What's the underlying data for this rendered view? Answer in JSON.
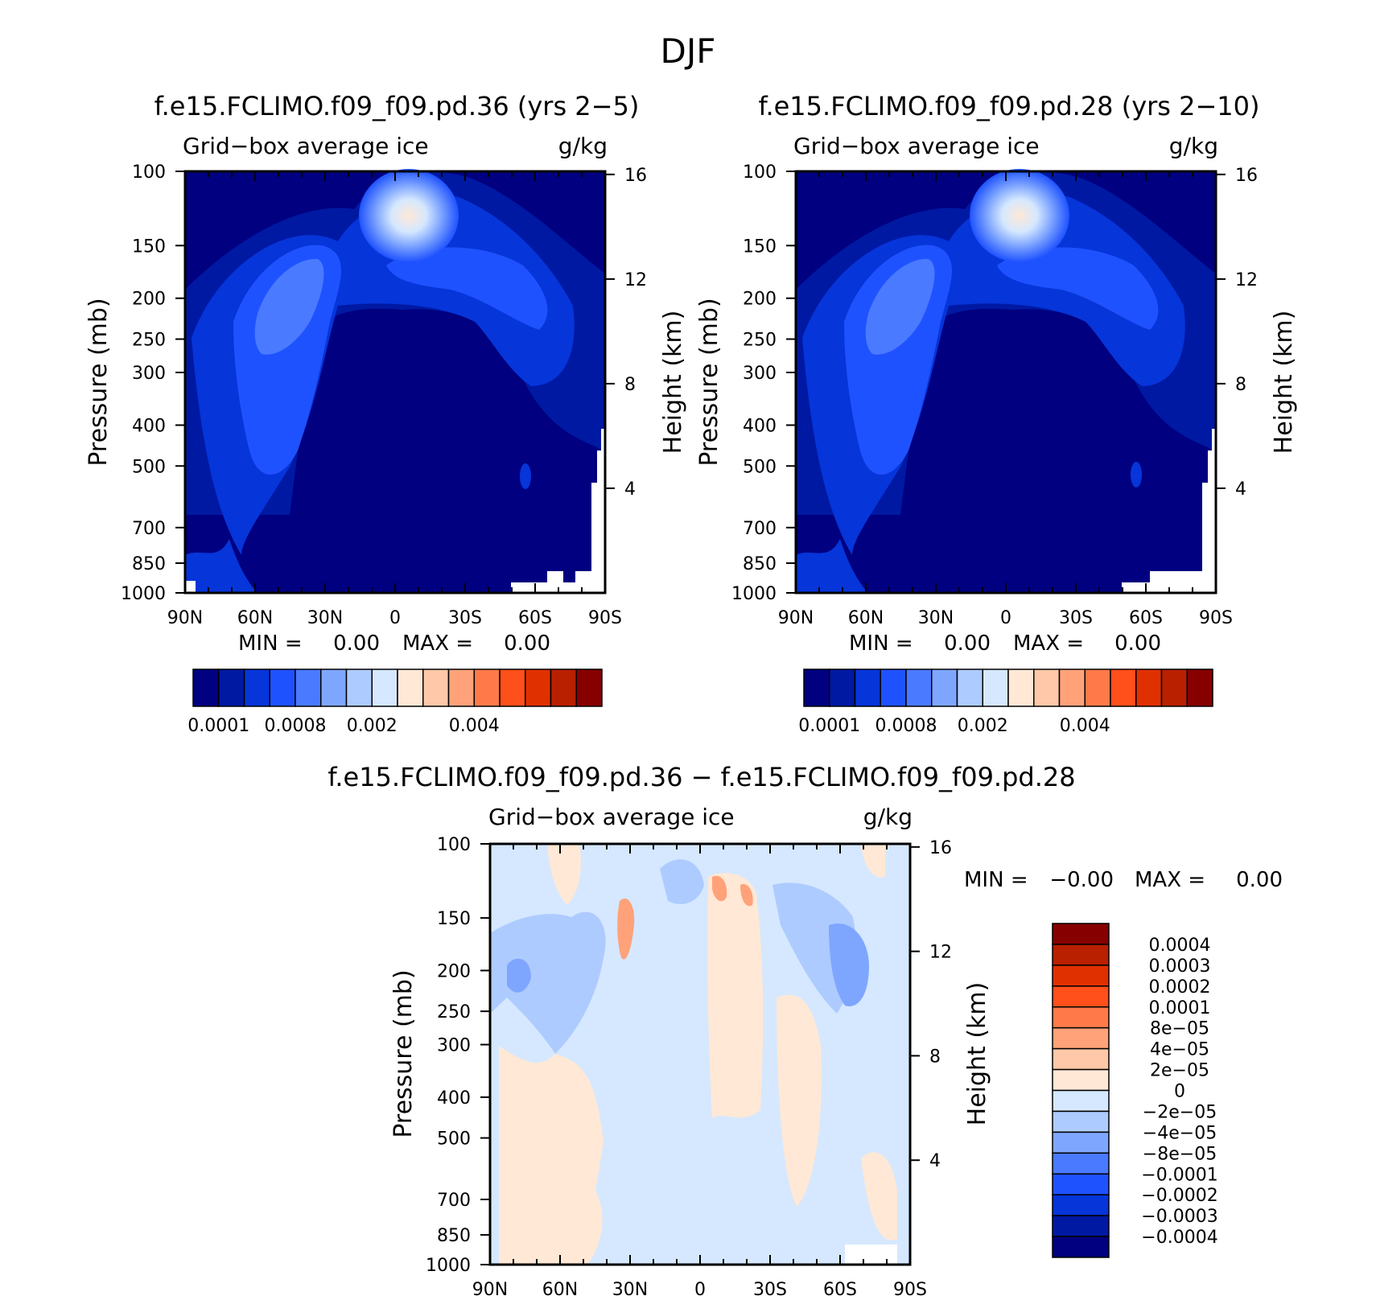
{
  "figure": {
    "title": "DJF"
  },
  "chart_data": [
    {
      "type": "heatmap",
      "panel": "left",
      "title": "f.e15.FCLIMO.f09_f09.pd.36 (yrs 2−5)",
      "field": "Grid−box average ice",
      "units": "g/kg",
      "xlabel": "",
      "ylabel": "Pressure (mb)",
      "y2label": "Height (km)",
      "x_ticks": [
        "90N",
        "60N",
        "30N",
        "0",
        "30S",
        "60S",
        "90S"
      ],
      "y_ticks": [
        "100",
        "150",
        "200",
        "250",
        "300",
        "400",
        "500",
        "700",
        "850",
        "1000"
      ],
      "y2_ticks": [
        "16",
        "12",
        "8",
        "4"
      ],
      "min_label": "MIN =",
      "min_value": "0.00",
      "max_label": "MAX =",
      "max_value": "0.00",
      "colorbar_labels": [
        "0.0001",
        "0.0008",
        "0.002",
        "0.004"
      ],
      "colors": [
        "#000080",
        "#0019a3",
        "#0635d9",
        "#1f52ff",
        "#4a7aff",
        "#7fa6ff",
        "#aecbff",
        "#d5e8ff",
        "#ffe8d6",
        "#ffc8a8",
        "#ffa27a",
        "#ff7a48",
        "#ff4f1a",
        "#e03000",
        "#b82000",
        "#870000"
      ]
    },
    {
      "type": "heatmap",
      "panel": "right",
      "title": "f.e15.FCLIMO.f09_f09.pd.28 (yrs 2−10)",
      "field": "Grid−box average ice",
      "units": "g/kg",
      "xlabel": "",
      "ylabel": "Pressure (mb)",
      "y2label": "Height (km)",
      "x_ticks": [
        "90N",
        "60N",
        "30N",
        "0",
        "30S",
        "60S",
        "90S"
      ],
      "y_ticks": [
        "100",
        "150",
        "200",
        "250",
        "300",
        "400",
        "500",
        "700",
        "850",
        "1000"
      ],
      "y2_ticks": [
        "16",
        "12",
        "8",
        "4"
      ],
      "min_label": "MIN =",
      "min_value": "0.00",
      "max_label": "MAX =",
      "max_value": "0.00",
      "colorbar_labels": [
        "0.0001",
        "0.0008",
        "0.002",
        "0.004"
      ],
      "colors": [
        "#000080",
        "#0019a3",
        "#0635d9",
        "#1f52ff",
        "#4a7aff",
        "#7fa6ff",
        "#aecbff",
        "#d5e8ff",
        "#ffe8d6",
        "#ffc8a8",
        "#ffa27a",
        "#ff7a48",
        "#ff4f1a",
        "#e03000",
        "#b82000",
        "#870000"
      ]
    },
    {
      "type": "heatmap",
      "panel": "difference",
      "title": "f.e15.FCLIMO.f09_f09.pd.36 − f.e15.FCLIMO.f09_f09.pd.28",
      "field": "Grid−box average ice",
      "units": "g/kg",
      "xlabel": "",
      "ylabel": "Pressure (mb)",
      "y2label": "Height (km)",
      "x_ticks": [
        "90N",
        "60N",
        "30N",
        "0",
        "30S",
        "60S",
        "90S"
      ],
      "y_ticks": [
        "100",
        "150",
        "200",
        "250",
        "300",
        "400",
        "500",
        "700",
        "850",
        "1000"
      ],
      "y2_ticks": [
        "16",
        "12",
        "8",
        "4"
      ],
      "min_label": "MIN =",
      "min_value": "−0.00",
      "max_label": "MAX =",
      "max_value": "0.00",
      "colorbar_labels": [
        "0.0004",
        "0.0003",
        "0.0002",
        "0.0001",
        "8e−05",
        "4e−05",
        "2e−05",
        "0",
        "−2e−05",
        "−4e−05",
        "−8e−05",
        "−0.0001",
        "−0.0002",
        "−0.0003",
        "−0.0004"
      ],
      "colors": [
        "#870000",
        "#b82000",
        "#e03000",
        "#ff4f1a",
        "#ff7a48",
        "#ffa27a",
        "#ffc8a8",
        "#ffe8d6",
        "#d5e8ff",
        "#aecbff",
        "#7fa6ff",
        "#4a7aff",
        "#1f52ff",
        "#0635d9",
        "#0019a3",
        "#000080"
      ]
    }
  ]
}
